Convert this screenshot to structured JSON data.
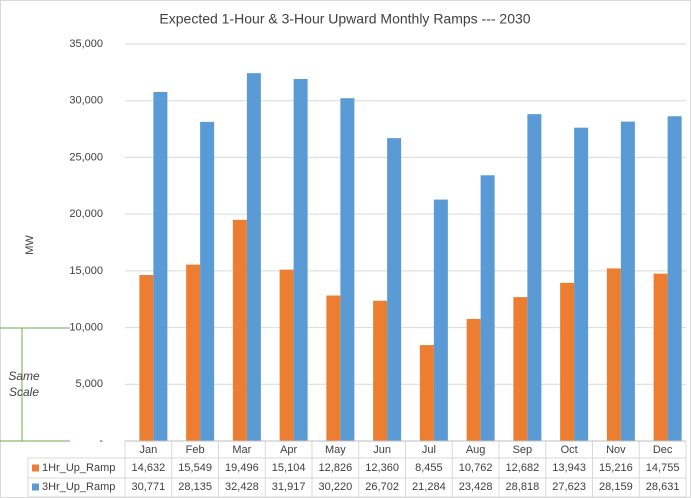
{
  "chart_data": {
    "type": "bar",
    "title": "Expected 1-Hour & 3-Hour Upward Monthly Ramps --- 2030",
    "y_label": "MW",
    "annotation": "Same Scale",
    "categories": [
      "Jan",
      "Feb",
      "Mar",
      "Apr",
      "May",
      "Jun",
      "Jul",
      "Aug",
      "Sep",
      "Oct",
      "Nov",
      "Dec"
    ],
    "series": [
      {
        "name": "1Hr_Up_Ramp",
        "color": "#ed7d31",
        "values": [
          14632,
          15549,
          19496,
          15104,
          12826,
          12360,
          8455,
          10762,
          12682,
          13943,
          15216,
          14755
        ],
        "value_labels": [
          "14,632",
          "15,549",
          "19,496",
          "15,104",
          "12,826",
          "12,360",
          "8,455",
          "10,762",
          "12,682",
          "13,943",
          "15,216",
          "14,755"
        ]
      },
      {
        "name": "3Hr_Up_Ramp",
        "color": "#5b9bd5",
        "values": [
          30771,
          28135,
          32428,
          31917,
          30220,
          26702,
          21284,
          23428,
          28818,
          27623,
          28159,
          28631
        ],
        "value_labels": [
          "30,771",
          "28,135",
          "32,428",
          "31,917",
          "30,220",
          "26,702",
          "21,284",
          "23,428",
          "28,818",
          "27,623",
          "28,159",
          "28,631"
        ]
      }
    ],
    "ylim": [
      0,
      35000
    ],
    "yticks": [
      {
        "value": 0,
        "label": "-"
      },
      {
        "value": 5000,
        "label": "5,000"
      },
      {
        "value": 10000,
        "label": "10,000"
      },
      {
        "value": 15000,
        "label": "15,000"
      },
      {
        "value": 20000,
        "label": "20,000"
      },
      {
        "value": 25000,
        "label": "25,000"
      },
      {
        "value": 30000,
        "label": "30,000"
      },
      {
        "value": 35000,
        "label": "35,000"
      }
    ],
    "grid": true
  }
}
